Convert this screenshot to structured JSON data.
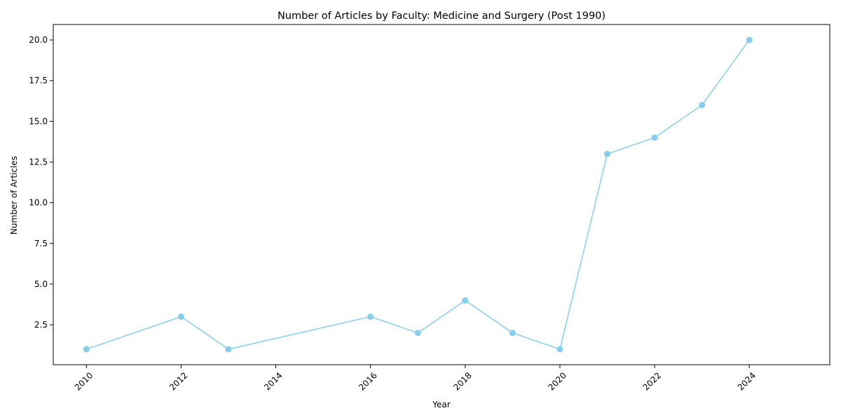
{
  "chart_data": {
    "type": "line",
    "title": "Number of Articles by Faculty: Medicine and Surgery (Post 1990)",
    "xlabel": "Year",
    "ylabel": "Number of Articles",
    "x": [
      2010,
      2012,
      2013,
      2016,
      2017,
      2018,
      2019,
      2020,
      2021,
      2022,
      2023,
      2024
    ],
    "series": [
      {
        "values": [
          1,
          3,
          1,
          3,
          2,
          4,
          2,
          1,
          13,
          14,
          16,
          20
        ],
        "color": "#87ceeb"
      }
    ],
    "xlim": [
      2009.3,
      2025.7
    ],
    "ylim": [
      0.05,
      20.95
    ],
    "x_ticks": [
      2010,
      2012,
      2014,
      2016,
      2018,
      2020,
      2022,
      2024
    ],
    "y_ticks": [
      2.5,
      5.0,
      7.5,
      10.0,
      12.5,
      15.0,
      17.5,
      20.0
    ],
    "grid": false,
    "x_tick_rotation": 45,
    "marker": "circle"
  }
}
